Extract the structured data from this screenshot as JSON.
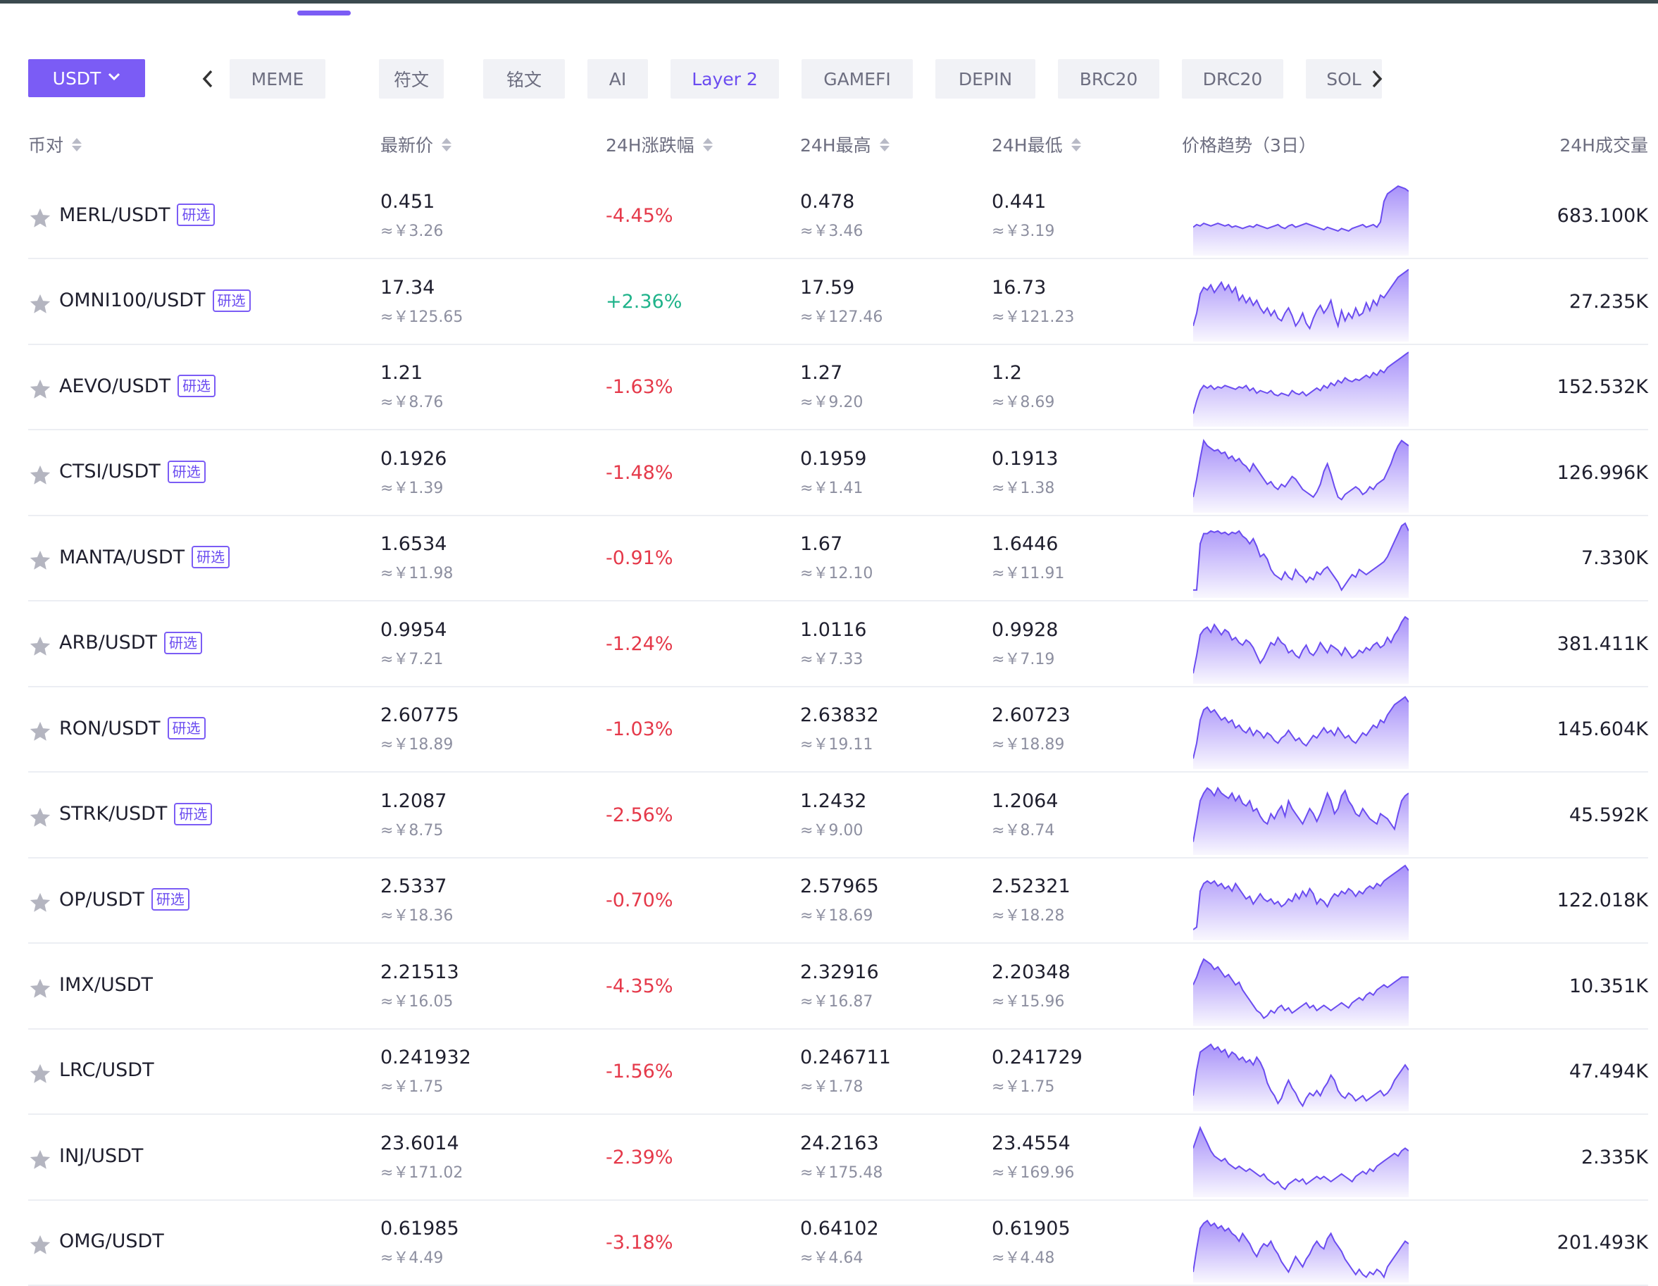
{
  "header": {
    "quote_currency": "USDT",
    "tabs": [
      "MEME",
      "符文",
      "铭文",
      "AI",
      "Layer 2",
      "GAMEFI",
      "DEPIN",
      "BRC20",
      "DRC20",
      "SOL"
    ],
    "active_tab": "Layer 2"
  },
  "columns": {
    "pair": "币对",
    "last_price": "最新价",
    "change_24h": "24H涨跌幅",
    "high_24h": "24H最高",
    "low_24h": "24H最低",
    "trend": "价格趋势（3日）",
    "volume_24h": "24H成交量"
  },
  "colors": {
    "accent": "#7b5cf5",
    "down": "#e5394a",
    "up": "#1fb38a"
  },
  "rows": [
    {
      "pair": "MERL/USDT",
      "badge": "研选",
      "last": "0.451",
      "last_cny": "≈￥3.26",
      "change": "-4.45%",
      "dir": "down",
      "high": "0.478",
      "high_cny": "≈￥3.46",
      "low": "0.441",
      "low_cny": "≈￥3.19",
      "volume": "683.100K",
      "trend": [
        20,
        22,
        21,
        23,
        22,
        21,
        22,
        23,
        22,
        21,
        22,
        20,
        21,
        20,
        19,
        20,
        21,
        20,
        22,
        21,
        20,
        19,
        20,
        21,
        22,
        20,
        19,
        21,
        22,
        20,
        21,
        22,
        23,
        22,
        21,
        20,
        19,
        18,
        20,
        19,
        18,
        17,
        19,
        18,
        17,
        19,
        20,
        21,
        22,
        20,
        21,
        22,
        20,
        24,
        40,
        46,
        48,
        50,
        52,
        51,
        50,
        48
      ]
    },
    {
      "pair": "OMNI100/USDT",
      "badge": "研选",
      "last": "17.34",
      "last_cny": "≈￥125.65",
      "change": "+2.36%",
      "dir": "up",
      "high": "17.59",
      "high_cny": "≈￥127.46",
      "low": "16.73",
      "low_cny": "≈￥121.23",
      "volume": "27.235K",
      "trend": [
        10,
        20,
        35,
        40,
        38,
        42,
        36,
        40,
        44,
        38,
        42,
        36,
        40,
        30,
        34,
        28,
        32,
        26,
        30,
        24,
        20,
        24,
        18,
        22,
        16,
        14,
        20,
        24,
        18,
        10,
        14,
        20,
        12,
        8,
        16,
        22,
        26,
        20,
        24,
        30,
        18,
        10,
        22,
        14,
        20,
        16,
        24,
        18,
        20,
        28,
        22,
        30,
        26,
        34,
        32,
        36,
        40,
        44,
        48,
        50,
        52,
        54
      ]
    },
    {
      "pair": "AEVO/USDT",
      "badge": "研选",
      "last": "1.21",
      "last_cny": "≈￥8.76",
      "change": "-1.63%",
      "dir": "down",
      "high": "1.27",
      "high_cny": "≈￥9.20",
      "low": "1.2",
      "low_cny": "≈￥8.69",
      "volume": "152.532K",
      "trend": [
        8,
        18,
        26,
        30,
        28,
        30,
        27,
        29,
        28,
        30,
        29,
        28,
        27,
        29,
        28,
        30,
        26,
        28,
        24,
        26,
        25,
        24,
        26,
        23,
        22,
        24,
        23,
        22,
        26,
        24,
        23,
        25,
        22,
        24,
        26,
        28,
        26,
        30,
        28,
        32,
        30,
        34,
        32,
        36,
        34,
        33,
        35,
        34,
        36,
        38,
        36,
        40,
        38,
        42,
        40,
        44,
        46,
        48,
        50,
        52,
        54,
        56
      ]
    },
    {
      "pair": "CTSI/USDT",
      "badge": "研选",
      "last": "0.1926",
      "last_cny": "≈￥1.39",
      "change": "-1.48%",
      "dir": "down",
      "high": "0.1959",
      "high_cny": "≈￥1.41",
      "low": "0.1913",
      "low_cny": "≈￥1.38",
      "volume": "126.996K",
      "trend": [
        10,
        24,
        40,
        54,
        50,
        48,
        46,
        47,
        44,
        45,
        40,
        42,
        38,
        40,
        36,
        34,
        30,
        36,
        32,
        28,
        24,
        20,
        22,
        18,
        16,
        20,
        18,
        22,
        26,
        24,
        20,
        16,
        14,
        12,
        10,
        14,
        20,
        30,
        36,
        28,
        18,
        10,
        8,
        12,
        14,
        16,
        18,
        16,
        12,
        14,
        18,
        16,
        20,
        22,
        24,
        30,
        36,
        44,
        50,
        54,
        52,
        50
      ]
    },
    {
      "pair": "MANTA/USDT",
      "badge": "研选",
      "last": "1.6534",
      "last_cny": "≈￥11.98",
      "change": "-0.91%",
      "dir": "down",
      "high": "1.67",
      "high_cny": "≈￥12.10",
      "low": "1.6446",
      "low_cny": "≈￥11.91",
      "volume": "7.330K",
      "trend": [
        4,
        4,
        40,
        48,
        48,
        50,
        49,
        50,
        48,
        49,
        47,
        49,
        48,
        50,
        46,
        44,
        40,
        44,
        38,
        30,
        32,
        28,
        20,
        16,
        14,
        12,
        18,
        14,
        12,
        20,
        16,
        14,
        10,
        14,
        12,
        18,
        16,
        20,
        22,
        18,
        14,
        10,
        4,
        8,
        12,
        16,
        14,
        20,
        18,
        16,
        18,
        20,
        22,
        24,
        26,
        30,
        36,
        42,
        48,
        54,
        56,
        50
      ]
    },
    {
      "pair": "ARB/USDT",
      "badge": "研选",
      "last": "0.9954",
      "last_cny": "≈￥7.21",
      "change": "-1.24%",
      "dir": "down",
      "high": "1.0116",
      "high_cny": "≈￥7.33",
      "low": "0.9928",
      "low_cny": "≈￥7.19",
      "volume": "381.411K",
      "trend": [
        6,
        20,
        36,
        40,
        42,
        38,
        44,
        40,
        36,
        40,
        38,
        32,
        34,
        30,
        28,
        32,
        30,
        26,
        20,
        14,
        18,
        24,
        30,
        28,
        34,
        30,
        28,
        22,
        24,
        20,
        18,
        24,
        28,
        22,
        20,
        24,
        30,
        26,
        22,
        28,
        26,
        24,
        20,
        26,
        22,
        18,
        20,
        24,
        22,
        26,
        24,
        28,
        30,
        26,
        28,
        34,
        30,
        36,
        40,
        46,
        50,
        48
      ]
    },
    {
      "pair": "RON/USDT",
      "badge": "研选",
      "last": "2.60775",
      "last_cny": "≈￥18.89",
      "change": "-1.03%",
      "dir": "down",
      "high": "2.63832",
      "high_cny": "≈￥19.11",
      "low": "2.60723",
      "low_cny": "≈￥18.89",
      "volume": "145.604K",
      "trend": [
        6,
        18,
        36,
        44,
        46,
        42,
        44,
        40,
        36,
        38,
        34,
        36,
        30,
        32,
        28,
        26,
        30,
        24,
        28,
        26,
        22,
        26,
        24,
        20,
        18,
        22,
        24,
        28,
        24,
        20,
        22,
        18,
        16,
        20,
        24,
        22,
        26,
        30,
        26,
        28,
        24,
        30,
        26,
        22,
        24,
        20,
        18,
        22,
        26,
        24,
        28,
        32,
        30,
        36,
        34,
        40,
        44,
        48,
        50,
        52,
        54,
        50
      ]
    },
    {
      "pair": "STRK/USDT",
      "badge": "研选",
      "last": "1.2087",
      "last_cny": "≈￥8.75",
      "change": "-2.56%",
      "dir": "down",
      "high": "1.2432",
      "high_cny": "≈￥9.00",
      "low": "1.2064",
      "low_cny": "≈￥8.74",
      "volume": "45.592K",
      "trend": [
        8,
        24,
        40,
        46,
        50,
        48,
        44,
        50,
        46,
        44,
        42,
        46,
        40,
        44,
        38,
        36,
        40,
        32,
        34,
        28,
        24,
        22,
        30,
        26,
        32,
        36,
        28,
        40,
        34,
        30,
        26,
        22,
        28,
        34,
        30,
        24,
        30,
        38,
        46,
        40,
        30,
        34,
        44,
        48,
        40,
        36,
        30,
        28,
        34,
        30,
        26,
        24,
        22,
        30,
        28,
        26,
        22,
        18,
        30,
        40,
        44,
        46
      ]
    },
    {
      "pair": "OP/USDT",
      "badge": "研选",
      "last": "2.5337",
      "last_cny": "≈￥18.36",
      "change": "-0.70%",
      "dir": "down",
      "high": "2.57965",
      "high_cny": "≈￥18.69",
      "low": "2.52321",
      "low_cny": "≈￥18.28",
      "volume": "122.018K",
      "trend": [
        6,
        8,
        36,
        42,
        44,
        42,
        44,
        40,
        42,
        38,
        40,
        36,
        42,
        38,
        34,
        30,
        32,
        26,
        30,
        34,
        30,
        28,
        30,
        26,
        28,
        24,
        26,
        30,
        28,
        34,
        30,
        36,
        32,
        38,
        34,
        26,
        30,
        28,
        24,
        30,
        34,
        32,
        36,
        34,
        38,
        36,
        32,
        36,
        34,
        38,
        40,
        38,
        42,
        40,
        44,
        46,
        48,
        50,
        52,
        54,
        56,
        52
      ]
    },
    {
      "pair": "IMX/USDT",
      "badge": "",
      "last": "2.21513",
      "last_cny": "≈￥16.05",
      "change": "-4.35%",
      "dir": "down",
      "high": "2.32916",
      "high_cny": "≈￥16.87",
      "low": "2.20348",
      "low_cny": "≈￥15.96",
      "volume": "10.351K",
      "trend": [
        30,
        36,
        44,
        50,
        48,
        46,
        42,
        44,
        40,
        36,
        38,
        34,
        30,
        32,
        26,
        22,
        18,
        14,
        10,
        8,
        4,
        6,
        10,
        8,
        12,
        14,
        10,
        12,
        8,
        10,
        12,
        14,
        16,
        12,
        14,
        10,
        12,
        14,
        12,
        10,
        12,
        14,
        16,
        14,
        12,
        16,
        18,
        20,
        18,
        22,
        24,
        22,
        26,
        28,
        30,
        28,
        30,
        32,
        34,
        36,
        36,
        36
      ]
    },
    {
      "pair": "LRC/USDT",
      "badge": "",
      "last": "0.241932",
      "last_cny": "≈￥1.75",
      "change": "-1.56%",
      "dir": "down",
      "high": "0.246711",
      "high_cny": "≈￥1.78",
      "low": "0.241729",
      "low_cny": "≈￥1.75",
      "volume": "47.494K",
      "trend": [
        10,
        30,
        44,
        46,
        48,
        50,
        46,
        48,
        44,
        46,
        40,
        44,
        42,
        38,
        40,
        36,
        38,
        34,
        40,
        36,
        30,
        20,
        14,
        10,
        4,
        8,
        16,
        22,
        16,
        12,
        6,
        2,
        8,
        12,
        10,
        14,
        10,
        16,
        20,
        26,
        22,
        14,
        10,
        8,
        12,
        10,
        6,
        8,
        10,
        6,
        8,
        10,
        12,
        14,
        10,
        12,
        16,
        22,
        26,
        30,
        34,
        30
      ]
    },
    {
      "pair": "INJ/USDT",
      "badge": "",
      "last": "23.6014",
      "last_cny": "≈￥171.02",
      "change": "-2.39%",
      "dir": "down",
      "high": "24.2163",
      "high_cny": "≈￥175.48",
      "low": "23.4554",
      "low_cny": "≈￥169.96",
      "volume": "2.335K",
      "trend": [
        36,
        44,
        52,
        46,
        40,
        34,
        30,
        28,
        26,
        28,
        24,
        22,
        20,
        22,
        20,
        18,
        20,
        18,
        16,
        14,
        16,
        12,
        10,
        8,
        10,
        6,
        4,
        8,
        10,
        12,
        10,
        12,
        8,
        10,
        12,
        14,
        12,
        14,
        12,
        10,
        12,
        14,
        16,
        14,
        12,
        10,
        14,
        16,
        18,
        16,
        20,
        18,
        22,
        24,
        26,
        28,
        30,
        32,
        30,
        34,
        36,
        34
      ]
    },
    {
      "pair": "OMG/USDT",
      "badge": "",
      "last": "0.61985",
      "last_cny": "≈￥4.49",
      "change": "-3.18%",
      "dir": "down",
      "high": "0.64102",
      "high_cny": "≈￥4.64",
      "low": "0.61905",
      "low_cny": "≈￥4.48",
      "volume": "201.493K",
      "trend": [
        6,
        24,
        40,
        44,
        46,
        42,
        44,
        40,
        42,
        38,
        40,
        36,
        34,
        30,
        36,
        32,
        28,
        22,
        18,
        24,
        28,
        26,
        30,
        24,
        20,
        14,
        10,
        6,
        12,
        18,
        14,
        10,
        16,
        20,
        26,
        30,
        26,
        24,
        32,
        36,
        30,
        26,
        22,
        16,
        12,
        8,
        4,
        8,
        4,
        2,
        6,
        4,
        8,
        6,
        2,
        10,
        14,
        18,
        22,
        26,
        30,
        28
      ]
    }
  ]
}
